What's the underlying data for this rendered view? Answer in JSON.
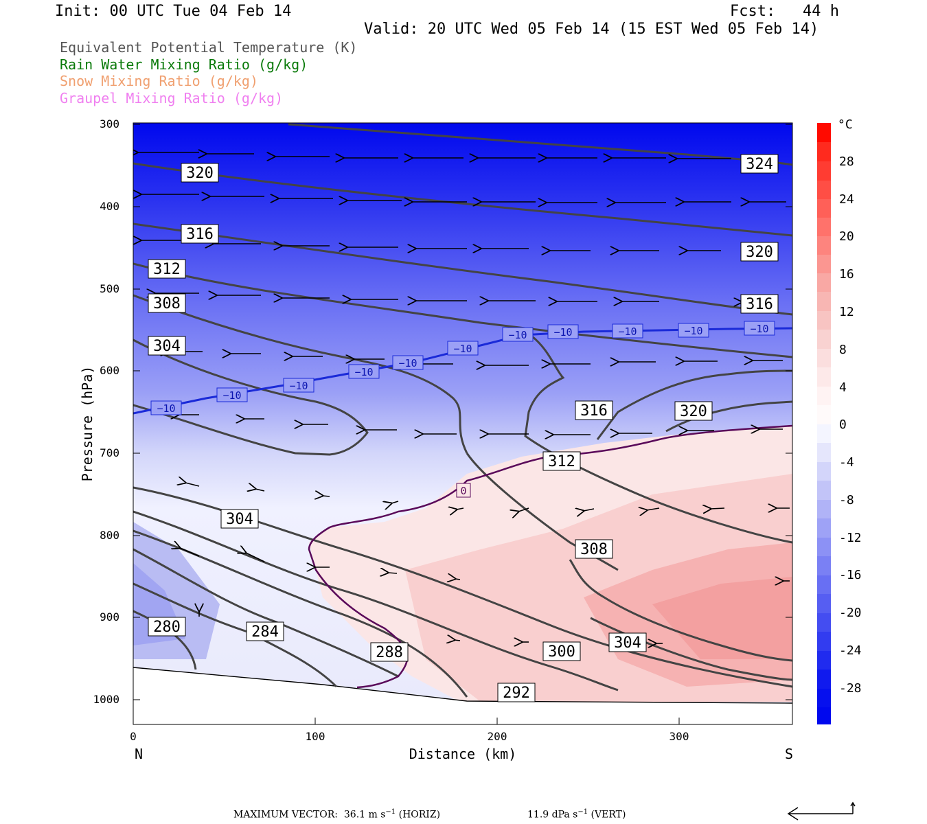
{
  "header": {
    "init": "Init: 00 UTC Tue 04 Feb 14",
    "fcst": "Fcst:   44 h",
    "valid": "Valid: 20 UTC Wed 05 Feb 14 (15 EST Wed 05 Feb 14)"
  },
  "legend": [
    {
      "label": "Equivalent Potential Temperature (K)",
      "color": "#555555"
    },
    {
      "label": "Rain Water Mixing Ratio (g/kg)",
      "color": "#0a7a0a"
    },
    {
      "label": "Snow Mixing Ratio (g/kg)",
      "color": "#f0a070"
    },
    {
      "label": "Graupel Mixing Ratio (g/kg)",
      "color": "#f080f0"
    }
  ],
  "chart_data": {
    "type": "cross-section",
    "xlabel": "Distance (km)",
    "ylabel": "Pressure (hPa)",
    "x_ticks": [
      0,
      100,
      200,
      300
    ],
    "x_end_labels": {
      "left": "N",
      "right": "S"
    },
    "y_ticks": [
      300,
      400,
      500,
      600,
      700,
      800,
      900,
      1000
    ],
    "xlim": [
      0,
      362
    ],
    "ylim": [
      300,
      1030
    ],
    "colorbar": {
      "unit": "°C",
      "ticks": [
        28,
        24,
        20,
        16,
        12,
        8,
        4,
        0,
        -4,
        -8,
        -12,
        -16,
        -20,
        -24,
        -28
      ]
    },
    "theta_e_labels": [
      {
        "text": "320",
        "x": 36,
        "p": 360
      },
      {
        "text": "324",
        "x": 345,
        "p": 350
      },
      {
        "text": "316",
        "x": 36,
        "p": 435
      },
      {
        "text": "320",
        "x": 345,
        "p": 455
      },
      {
        "text": "312",
        "x": 18,
        "p": 478
      },
      {
        "text": "316",
        "x": 345,
        "p": 520
      },
      {
        "text": "308",
        "x": 18,
        "p": 518
      },
      {
        "text": "304",
        "x": 18,
        "p": 570
      },
      {
        "text": "316",
        "x": 253,
        "p": 650
      },
      {
        "text": "320",
        "x": 310,
        "p": 650
      },
      {
        "text": "312",
        "x": 234,
        "p": 710
      },
      {
        "text": "304",
        "x": 58,
        "p": 780
      },
      {
        "text": "308",
        "x": 253,
        "p": 817
      },
      {
        "text": "280",
        "x": 18,
        "p": 928
      },
      {
        "text": "284",
        "x": 73,
        "p": 935
      },
      {
        "text": "288",
        "x": 141,
        "p": 958
      },
      {
        "text": "300",
        "x": 234,
        "p": 958
      },
      {
        "text": "304",
        "x": 271,
        "p": 948
      },
      {
        "text": "292",
        "x": 210,
        "p": 1003
      }
    ],
    "isotherm_labels": [
      {
        "text": "−10",
        "x": 18,
        "p": 655
      },
      {
        "text": "−10",
        "x": 54,
        "p": 630
      },
      {
        "text": "−10",
        "x": 91,
        "p": 618
      },
      {
        "text": "−10",
        "x": 127,
        "p": 602
      },
      {
        "text": "−10",
        "x": 151,
        "p": 594
      },
      {
        "text": "−10",
        "x": 181,
        "p": 575
      },
      {
        "text": "−10",
        "x": 211,
        "p": 557
      },
      {
        "text": "−10",
        "x": 236,
        "p": 554
      },
      {
        "text": "−10",
        "x": 272,
        "p": 552
      },
      {
        "text": "−10",
        "x": 309,
        "p": 552
      },
      {
        "text": "−10",
        "x": 344,
        "p": 549
      },
      {
        "text": "0",
        "x": 182,
        "p": 746
      }
    ]
  },
  "footer": {
    "left": "MAXIMUM VECTOR:  36.1 m s",
    "horiz_unit": " (HORIZ)",
    "vert": "11.9 dPa s",
    "vert_unit": " (VERT)",
    "exponent": "−1"
  }
}
